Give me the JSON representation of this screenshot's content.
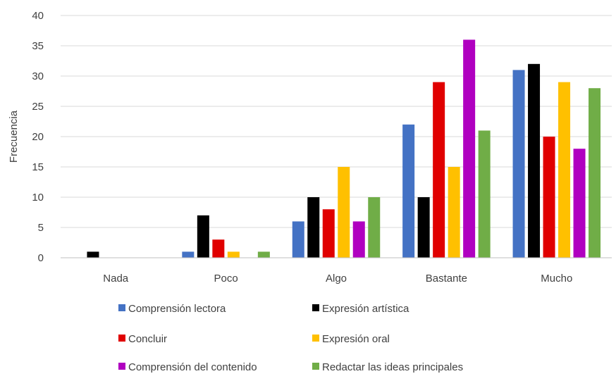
{
  "chart_data": {
    "type": "bar",
    "title": "",
    "xlabel": "",
    "ylabel": "Frecuencia",
    "ylim": [
      0,
      40
    ],
    "yticks": [
      0,
      5,
      10,
      15,
      20,
      25,
      30,
      35,
      40
    ],
    "grid": true,
    "legend_position": "bottom",
    "categories": [
      "Nada",
      "Poco",
      "Algo",
      "Bastante",
      "Mucho"
    ],
    "series": [
      {
        "name": "Comprensión lectora",
        "color": "#4472C4",
        "values": [
          0,
          1,
          6,
          22,
          31
        ]
      },
      {
        "name": "Expresión artística",
        "color": "#000000",
        "values": [
          1,
          7,
          10,
          10,
          32
        ]
      },
      {
        "name": "Concluir",
        "color": "#E00000",
        "values": [
          0,
          3,
          8,
          29,
          20
        ]
      },
      {
        "name": "Expresión oral",
        "color": "#FFC000",
        "values": [
          0,
          1,
          15,
          15,
          29
        ]
      },
      {
        "name": "Comprensión del contenido",
        "color": "#B000C0",
        "values": [
          0,
          0,
          6,
          36,
          18
        ]
      },
      {
        "name": "Redactar las ideas principales",
        "color": "#70AD47",
        "values": [
          0,
          1,
          10,
          21,
          28
        ]
      }
    ]
  }
}
